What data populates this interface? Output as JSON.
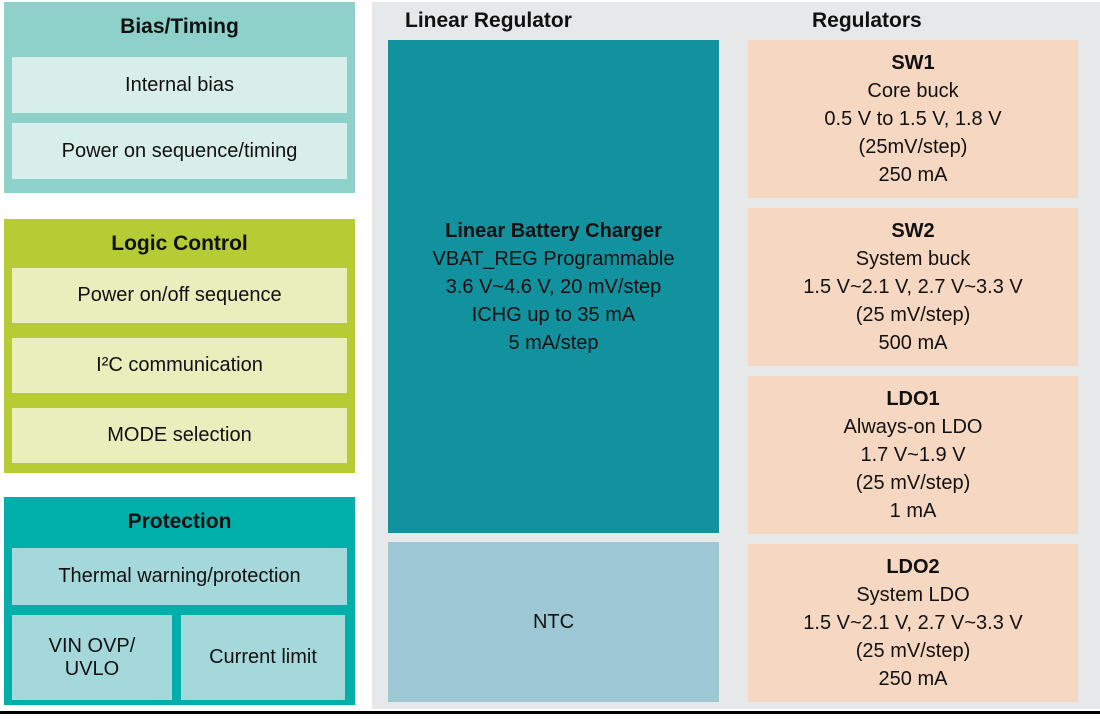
{
  "colors": {
    "bias_group_bg": "#8dd1ca",
    "bias_item_bg": "#d8eeeb",
    "logic_group_bg": "#b5cc34",
    "logic_item_bg": "#e9eebd",
    "protection_group_bg": "#00afa9",
    "protection_item_bg": "#a5d8db",
    "charger_block_bg": "#12929e",
    "ntc_block_bg": "#9bc8d2",
    "regulator_block_bg": "#f6d8c2",
    "panel_bg": "#e7e8ea",
    "text": "#111111",
    "bottom_rule": "#000000"
  },
  "left": {
    "groups": [
      {
        "title": "Bias/Timing",
        "items": [
          "Internal bias",
          "Power on sequence/timing"
        ]
      },
      {
        "title": "Logic Control",
        "items": [
          "Power on/off sequence",
          "I²C communication",
          "MODE selection"
        ]
      },
      {
        "title": "Protection",
        "items": [
          "Thermal warning/protection",
          "VIN OVP/\nUVLO",
          "Current limit"
        ]
      }
    ]
  },
  "middle": {
    "title": "Linear Regulator",
    "charger": {
      "heading": "Linear Battery Charger",
      "lines": [
        "VBAT_REG Programmable",
        "3.6 V~4.6 V, 20 mV/step",
        "ICHG up to 35 mA",
        "5 mA/step"
      ]
    },
    "ntc_label": "NTC"
  },
  "right": {
    "title": "Regulators",
    "blocks": [
      {
        "name": "SW1",
        "lines": [
          "Core buck",
          "0.5 V to 1.5 V, 1.8 V",
          "(25mV/step)",
          "250 mA"
        ]
      },
      {
        "name": "SW2",
        "lines": [
          "System buck",
          "1.5 V~2.1 V, 2.7 V~3.3 V",
          "(25 mV/step)",
          "500 mA"
        ]
      },
      {
        "name": "LDO1",
        "lines": [
          "Always-on LDO",
          "1.7 V~1.9 V",
          "(25 mV/step)",
          "1 mA"
        ]
      },
      {
        "name": "LDO2",
        "lines": [
          "System LDO",
          "1.5 V~2.1 V, 2.7 V~3.3 V",
          "(25 mV/step)",
          "250 mA"
        ]
      }
    ]
  }
}
